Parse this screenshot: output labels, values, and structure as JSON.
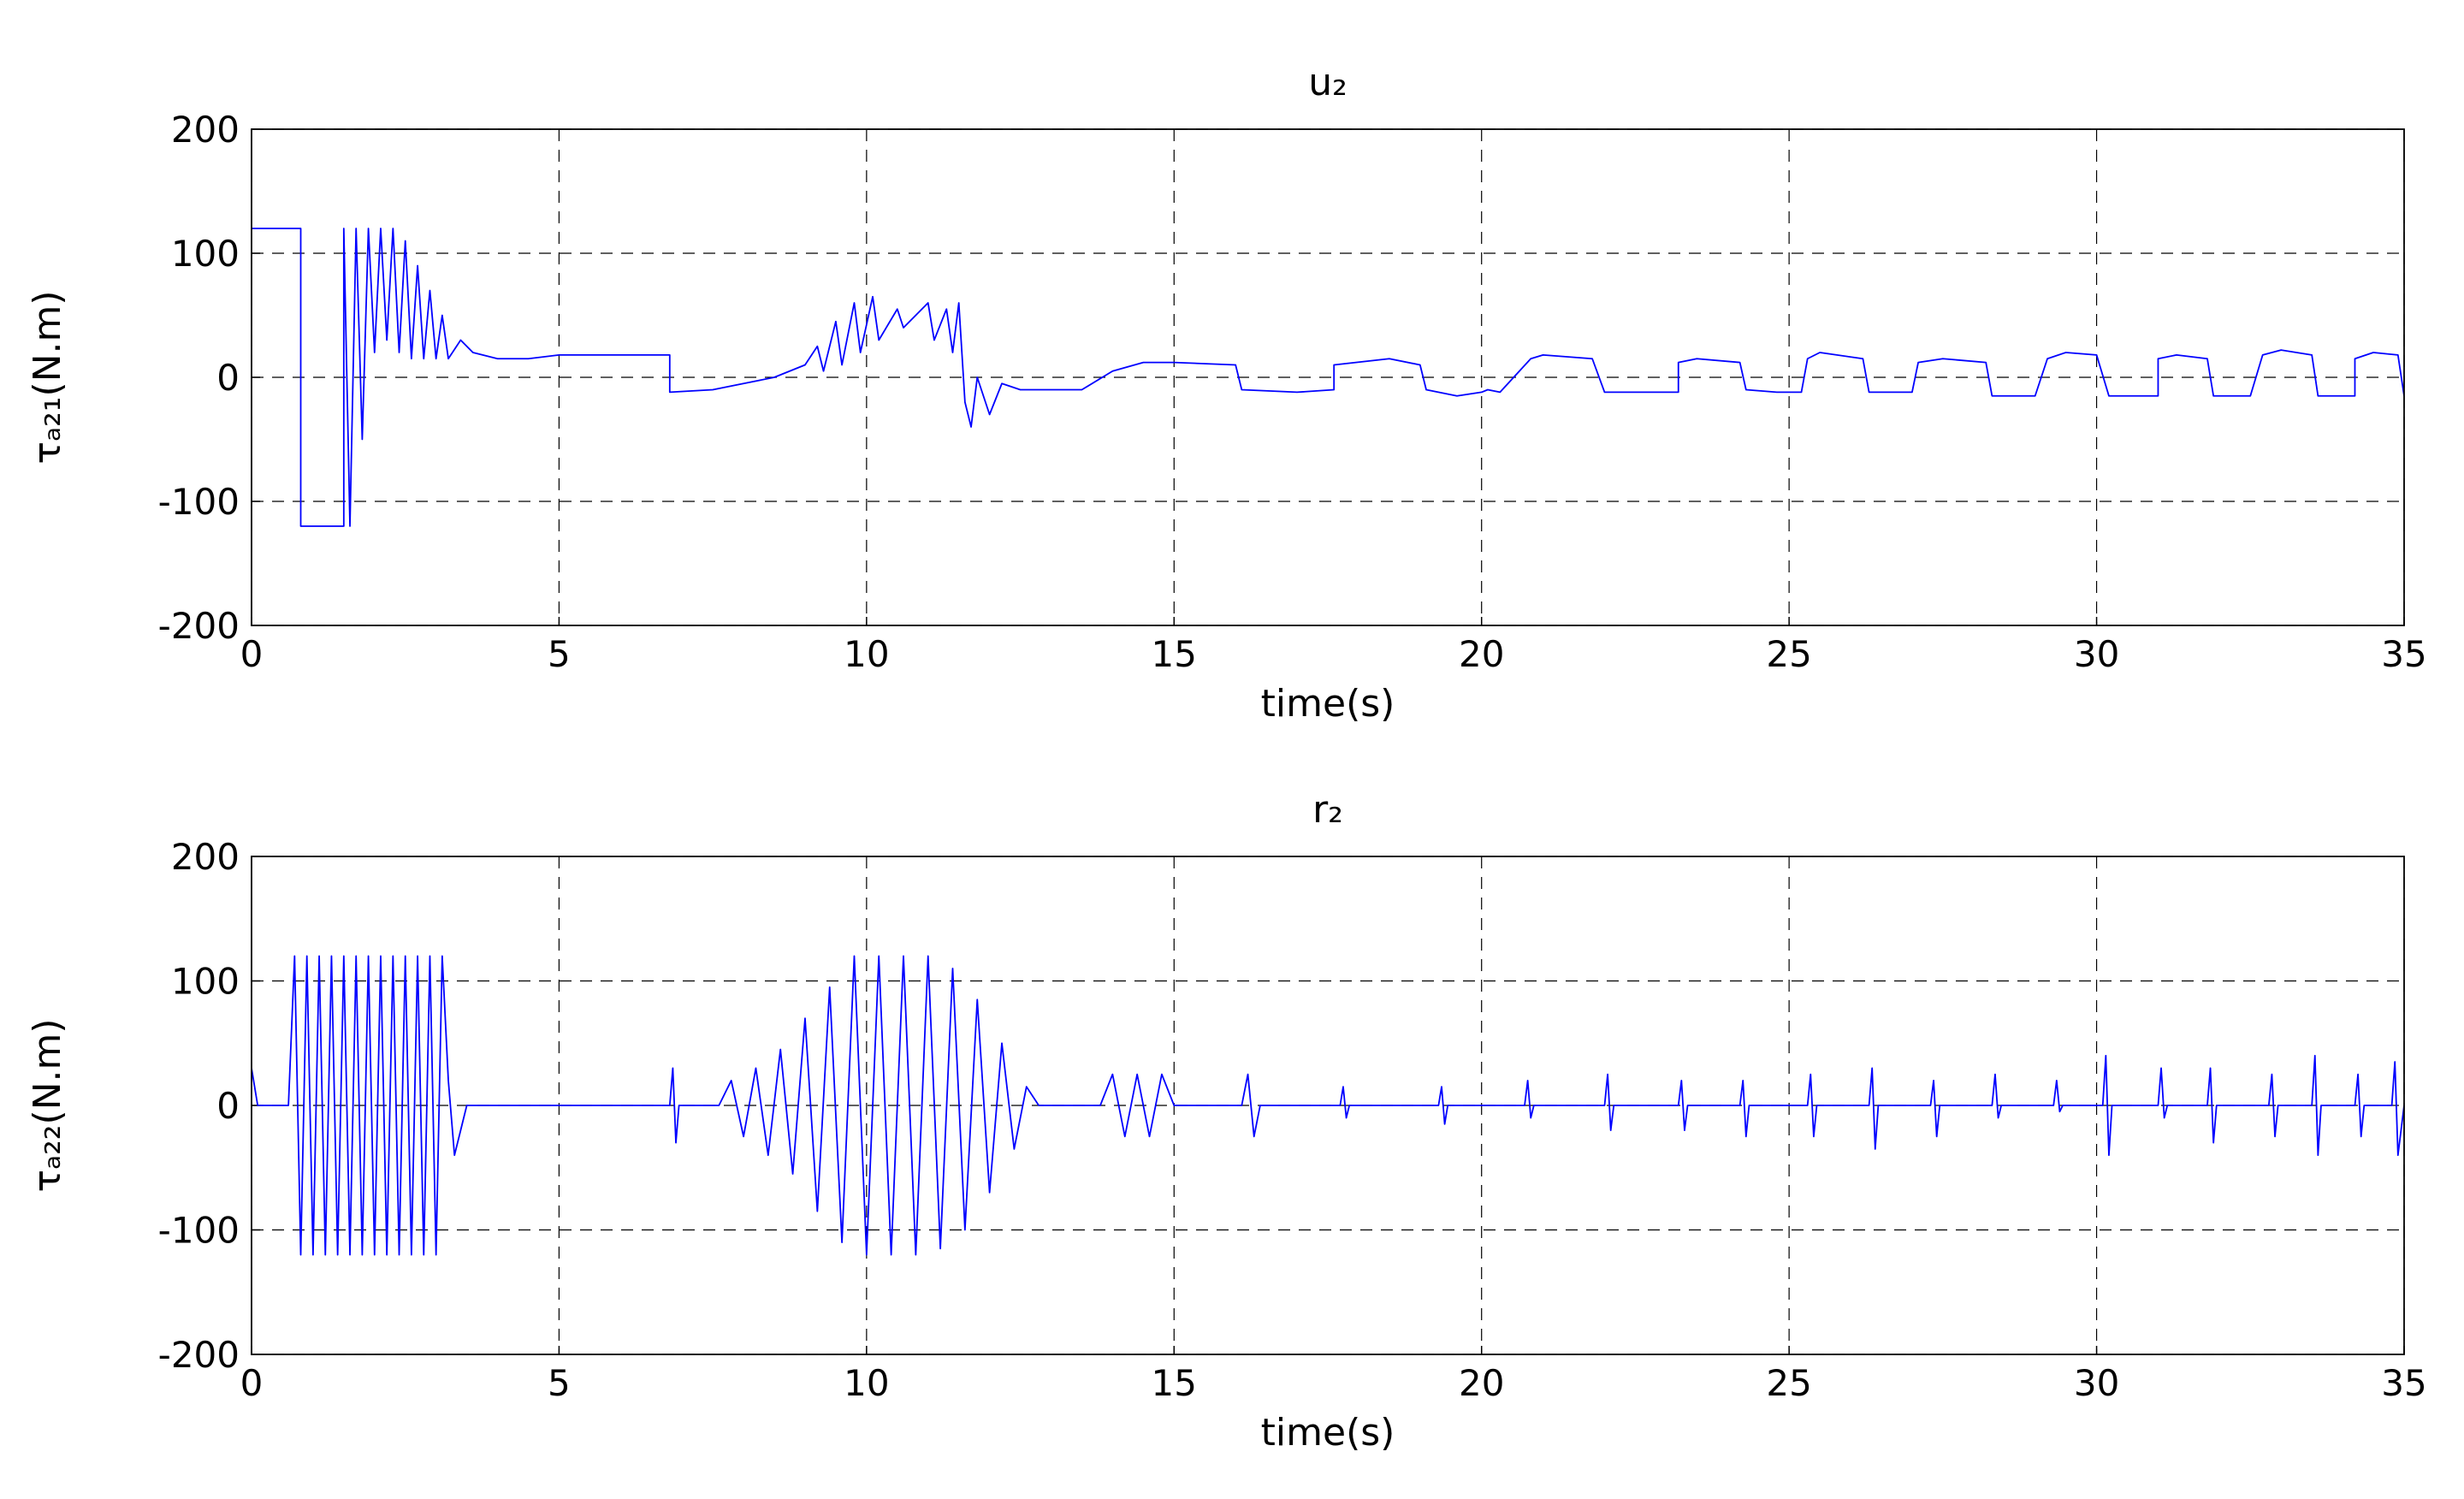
{
  "chart_data": [
    {
      "type": "line",
      "title": "u₂",
      "xlabel": "time(s)",
      "ylabel": "τₐ₂₁(N.m)",
      "color": "#0000ff",
      "grid": true,
      "xlim": [
        0,
        35
      ],
      "xticks": [
        0,
        5,
        10,
        15,
        20,
        25,
        30,
        35
      ],
      "ylim": [
        -200,
        200
      ],
      "yticks": [
        -200,
        -100,
        0,
        100,
        200
      ],
      "x": [
        0,
        0.8,
        0.8,
        1.5,
        1.5,
        1.6,
        1.7,
        1.8,
        1.9,
        2.0,
        2.1,
        2.2,
        2.3,
        2.4,
        2.5,
        2.6,
        2.7,
        2.8,
        2.9,
        3.0,
        3.1,
        3.2,
        3.4,
        3.6,
        4,
        4.5,
        5,
        6.8,
        6.8,
        7.5,
        8,
        8.5,
        9,
        9.2,
        9.3,
        9.5,
        9.6,
        9.8,
        9.9,
        10.1,
        10.2,
        10.5,
        10.6,
        11,
        11.1,
        11.3,
        11.4,
        11.5,
        11.6,
        11.7,
        11.8,
        12,
        12.2,
        12.5,
        13.5,
        14,
        14.5,
        15,
        16,
        16.1,
        17,
        17.6,
        17.6,
        18.5,
        19,
        19.1,
        19.6,
        20,
        20.1,
        20.3,
        20.8,
        21,
        21.8,
        22,
        23.2,
        23.2,
        23.5,
        24.2,
        24.3,
        24.8,
        25.2,
        25.3,
        25.5,
        26.2,
        26.3,
        27,
        27.1,
        27.5,
        28.2,
        28.3,
        29,
        29.2,
        29.5,
        30,
        30.2,
        31,
        31,
        31.3,
        31.8,
        31.9,
        32.5,
        32.7,
        33,
        33.5,
        33.6,
        34.2,
        34.2,
        34.5,
        34.9,
        35
      ],
      "values": [
        120,
        120,
        -120,
        -120,
        120,
        -120,
        120,
        -50,
        120,
        20,
        120,
        30,
        120,
        20,
        110,
        15,
        90,
        15,
        70,
        15,
        50,
        15,
        30,
        20,
        15,
        15,
        18,
        18,
        -12,
        -10,
        -5,
        0,
        10,
        25,
        5,
        45,
        10,
        60,
        20,
        65,
        30,
        55,
        40,
        60,
        30,
        55,
        20,
        60,
        -20,
        -40,
        0,
        -30,
        -5,
        -10,
        -10,
        5,
        12,
        12,
        10,
        -10,
        -12,
        -10,
        10,
        15,
        10,
        -10,
        -15,
        -12,
        -10,
        -12,
        15,
        18,
        15,
        -12,
        -12,
        12,
        15,
        12,
        -10,
        -12,
        -12,
        15,
        20,
        15,
        -12,
        -12,
        12,
        15,
        12,
        -15,
        -15,
        15,
        20,
        18,
        -15,
        -15,
        15,
        18,
        15,
        -15,
        -15,
        18,
        22,
        18,
        -15,
        -15,
        15,
        20,
        18,
        -15
      ]
    },
    {
      "type": "line",
      "title": "r₂",
      "xlabel": "time(s)",
      "ylabel": "τₐ₂₂(N.m)",
      "color": "#0000ff",
      "grid": true,
      "xlim": [
        0,
        35
      ],
      "xticks": [
        0,
        5,
        10,
        15,
        20,
        25,
        30,
        35
      ],
      "ylim": [
        -200,
        200
      ],
      "yticks": [
        -200,
        -100,
        0,
        100,
        200
      ],
      "x": [
        0,
        0.1,
        0.6,
        0.7,
        0.8,
        0.9,
        1.0,
        1.1,
        1.2,
        1.3,
        1.4,
        1.5,
        1.6,
        1.7,
        1.8,
        1.9,
        2.0,
        2.1,
        2.2,
        2.3,
        2.4,
        2.5,
        2.6,
        2.7,
        2.8,
        2.9,
        3.0,
        3.1,
        3.2,
        3.3,
        3.4,
        3.5,
        6.8,
        6.85,
        6.9,
        6.95,
        7.6,
        7.8,
        8.0,
        8.2,
        8.4,
        8.6,
        8.8,
        9.0,
        9.2,
        9.4,
        9.6,
        9.8,
        10.0,
        10.2,
        10.4,
        10.6,
        10.8,
        11.0,
        11.2,
        11.4,
        11.6,
        11.8,
        12.0,
        12.2,
        12.4,
        12.6,
        12.8,
        13.8,
        14.0,
        14.2,
        14.4,
        14.6,
        14.8,
        15,
        16.1,
        16.2,
        16.3,
        16.4,
        17.7,
        17.75,
        17.8,
        17.85,
        19.3,
        19.35,
        19.4,
        19.45,
        20.7,
        20.75,
        20.8,
        20.85,
        22,
        22.05,
        22.1,
        22.15,
        23.2,
        23.25,
        23.3,
        23.35,
        24.2,
        24.25,
        24.3,
        24.35,
        25.3,
        25.35,
        25.4,
        25.45,
        26.3,
        26.35,
        26.4,
        26.45,
        27.3,
        27.35,
        27.4,
        27.45,
        28.3,
        28.35,
        28.4,
        28.45,
        29.3,
        29.35,
        29.4,
        29.45,
        30.1,
        30.15,
        30.2,
        30.25,
        31,
        31.05,
        31.1,
        31.15,
        31.8,
        31.85,
        31.9,
        31.95,
        32.8,
        32.85,
        32.9,
        32.95,
        33.5,
        33.55,
        33.6,
        33.65,
        34.2,
        34.25,
        34.3,
        34.35,
        34.8,
        34.85,
        34.9,
        35
      ],
      "values": [
        30,
        0,
        0,
        120,
        -120,
        120,
        -120,
        120,
        -120,
        120,
        -120,
        120,
        -120,
        120,
        -120,
        120,
        -120,
        120,
        -120,
        120,
        -120,
        120,
        -120,
        120,
        -120,
        120,
        -120,
        120,
        20,
        -40,
        -20,
        0,
        0,
        30,
        -30,
        0,
        0,
        20,
        -25,
        30,
        -40,
        45,
        -55,
        70,
        -85,
        95,
        -110,
        120,
        -120,
        120,
        -120,
        120,
        -120,
        120,
        -115,
        110,
        -100,
        85,
        -70,
        50,
        -35,
        15,
        0,
        0,
        25,
        -25,
        25,
        -25,
        25,
        0,
        0,
        25,
        -25,
        0,
        0,
        15,
        -10,
        0,
        0,
        15,
        -15,
        0,
        0,
        20,
        -10,
        0,
        0,
        25,
        -20,
        0,
        0,
        20,
        -20,
        0,
        0,
        20,
        -25,
        0,
        0,
        25,
        -25,
        0,
        0,
        30,
        -35,
        0,
        0,
        20,
        -25,
        0,
        0,
        25,
        -10,
        0,
        0,
        20,
        -5,
        0,
        0,
        40,
        -40,
        0,
        0,
        30,
        -10,
        0,
        0,
        30,
        -30,
        0,
        0,
        25,
        -25,
        0,
        0,
        40,
        -40,
        0,
        0,
        25,
        -25,
        0,
        0,
        35,
        -40,
        0
      ]
    }
  ]
}
